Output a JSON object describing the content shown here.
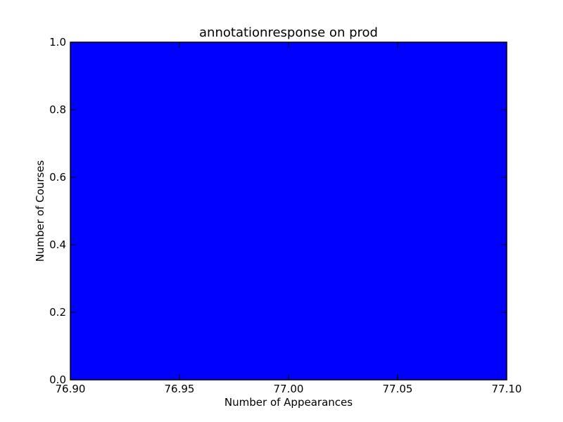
{
  "chart_data": {
    "type": "bar",
    "title": "annotationresponse on prod",
    "xlabel": "Number of Appearances",
    "ylabel": "Number of Courses",
    "xlim": [
      76.9,
      77.1
    ],
    "ylim": [
      0.0,
      1.0
    ],
    "x_ticks": [
      "76.90",
      "76.95",
      "77.00",
      "77.05",
      "77.10"
    ],
    "y_ticks": [
      "0.0",
      "0.2",
      "0.4",
      "0.6",
      "0.8",
      "1.0"
    ],
    "bars": [
      {
        "x_start": 76.9,
        "x_end": 77.1,
        "value": 1.0
      }
    ],
    "grid": false,
    "colors": {
      "bar": "#0000ff",
      "axes": "#000000",
      "background": "#ffffff"
    }
  }
}
